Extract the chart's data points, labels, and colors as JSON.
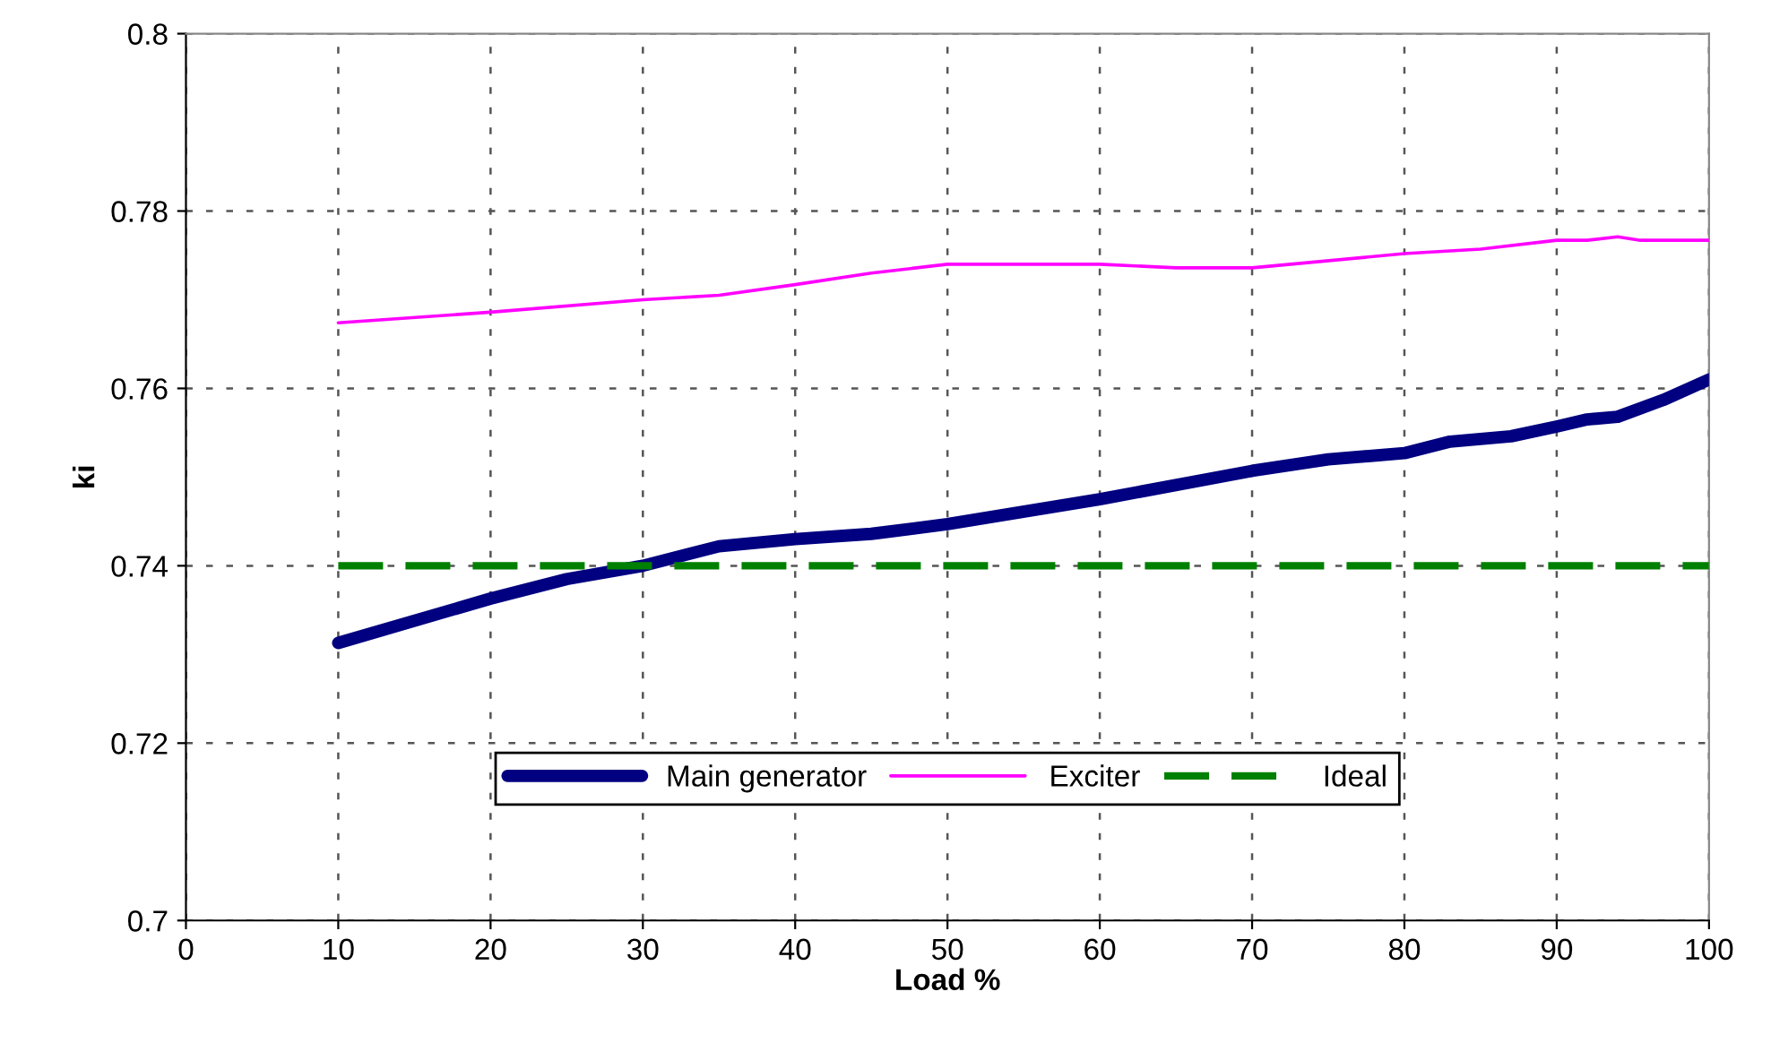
{
  "chart_data": {
    "type": "line",
    "xlabel": "Load %",
    "ylabel": "ki",
    "xlim": [
      0,
      100
    ],
    "xticks": [
      0,
      10,
      20,
      30,
      40,
      50,
      60,
      70,
      80,
      90,
      100
    ],
    "ylim": [
      0.7,
      0.8
    ],
    "yticks": [
      0.7,
      0.72,
      0.74,
      0.76,
      0.78,
      0.8
    ],
    "grid": true,
    "legend": "bottom",
    "marker": "none",
    "series": [
      {
        "name": "Main generator",
        "color": "#000080",
        "line_style": "solid",
        "x": [
          10,
          20,
          25,
          30,
          35,
          40,
          45,
          50,
          60,
          70,
          75,
          80,
          83,
          87,
          90,
          92,
          94,
          97,
          100
        ],
        "values": [
          0.7313,
          0.7363,
          0.7385,
          0.74,
          0.7422,
          0.743,
          0.7436,
          0.7447,
          0.7475,
          0.7507,
          0.752,
          0.7527,
          0.754,
          0.7546,
          0.7557,
          0.7565,
          0.7568,
          0.7587,
          0.761
        ]
      },
      {
        "name": "Exciter",
        "color": "#ff00ff",
        "line_style": "solid",
        "x": [
          10,
          20,
          30,
          35,
          40,
          45,
          50,
          60,
          65,
          70,
          80,
          85,
          90,
          92,
          94,
          95.5,
          100
        ],
        "values": [
          0.7674,
          0.7686,
          0.77,
          0.7705,
          0.7717,
          0.773,
          0.774,
          0.774,
          0.7736,
          0.7736,
          0.7752,
          0.7757,
          0.7767,
          0.7767,
          0.7771,
          0.7767,
          0.7767
        ]
      },
      {
        "name": "Ideal",
        "color": "#008000",
        "line_style": "dashed",
        "x": [
          10,
          100
        ],
        "values": [
          0.74,
          0.74
        ]
      }
    ]
  }
}
